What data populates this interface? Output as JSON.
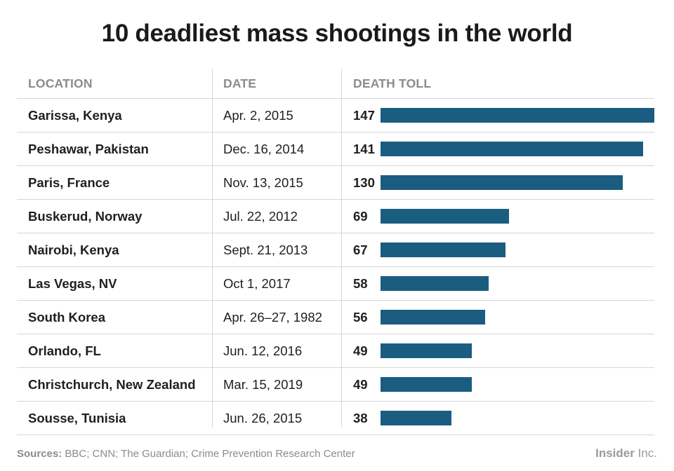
{
  "title": "10 deadliest mass shootings in the world",
  "headers": {
    "location": "LOCATION",
    "date": "DATE",
    "death_toll": "DEATH TOLL"
  },
  "footer": {
    "sources_label": "Sources:",
    "sources_text": " BBC; CNN; The Guardian; Crime Prevention Research Center",
    "brand_bold": "Insider",
    "brand_light": " Inc."
  },
  "colors": {
    "bar": "#1a5d80"
  },
  "chart_data": {
    "type": "bar",
    "title": "10 deadliest mass shootings in the world",
    "orientation": "horizontal",
    "xlim": [
      0,
      147
    ],
    "rows": [
      {
        "location": "Garissa, Kenya",
        "date": "Apr. 2, 2015",
        "value": 147
      },
      {
        "location": "Peshawar, Pakistan",
        "date": "Dec. 16, 2014",
        "value": 141
      },
      {
        "location": "Paris, France",
        "date": "Nov. 13, 2015",
        "value": 130
      },
      {
        "location": "Buskerud, Norway",
        "date": "Jul. 22, 2012",
        "value": 69
      },
      {
        "location": "Nairobi, Kenya",
        "date": "Sept. 21, 2013",
        "value": 67
      },
      {
        "location": "Las Vegas, NV",
        "date": "Oct 1, 2017",
        "value": 58
      },
      {
        "location": "South Korea",
        "date": "Apr. 26–27, 1982",
        "value": 56
      },
      {
        "location": "Orlando, FL",
        "date": "Jun. 12, 2016",
        "value": 49
      },
      {
        "location": "Christchurch, New Zealand",
        "date": "Mar. 15, 2019",
        "value": 49
      },
      {
        "location": "Sousse, Tunisia",
        "date": "Jun. 26, 2015",
        "value": 38
      }
    ]
  }
}
